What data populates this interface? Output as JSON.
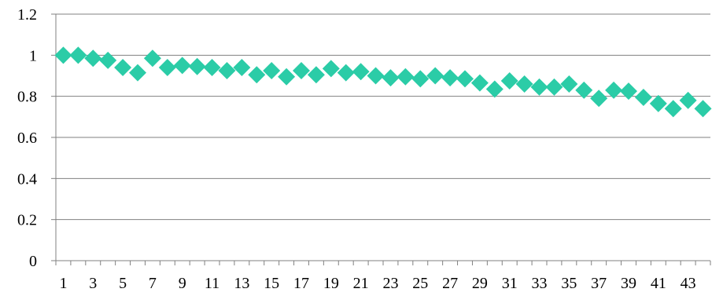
{
  "chart_data": {
    "type": "line",
    "marker": "diamond",
    "line_visible": false,
    "x": [
      1,
      2,
      3,
      4,
      5,
      6,
      7,
      8,
      9,
      10,
      11,
      12,
      13,
      14,
      15,
      16,
      17,
      18,
      19,
      20,
      21,
      22,
      23,
      24,
      25,
      26,
      27,
      28,
      29,
      30,
      31,
      32,
      33,
      34,
      35,
      36,
      37,
      38,
      39,
      40,
      41,
      42,
      43,
      44
    ],
    "x_tick_labels": [
      "1",
      "3",
      "5",
      "7",
      "9",
      "11",
      "13",
      "15",
      "17",
      "19",
      "21",
      "23",
      "25",
      "27",
      "29",
      "31",
      "33",
      "35",
      "37",
      "39",
      "41",
      "43"
    ],
    "series": [
      {
        "values": [
          1.0,
          1.0,
          0.985,
          0.975,
          0.94,
          0.915,
          0.985,
          0.94,
          0.95,
          0.945,
          0.94,
          0.925,
          0.94,
          0.905,
          0.925,
          0.895,
          0.925,
          0.905,
          0.935,
          0.915,
          0.92,
          0.9,
          0.89,
          0.895,
          0.885,
          0.9,
          0.89,
          0.885,
          0.865,
          0.835,
          0.875,
          0.86,
          0.845,
          0.845,
          0.86,
          0.83,
          0.79,
          0.83,
          0.825,
          0.795,
          0.765,
          0.74,
          0.78,
          0.74
        ],
        "color": "#2bcca7"
      }
    ],
    "y_ticks": [
      "0",
      "0.2",
      "0.4",
      "0.6",
      "0.8",
      "1",
      "1.2"
    ],
    "ylim": [
      0,
      1.2
    ],
    "grid": "horizontal",
    "title": "",
    "xlabel": "",
    "ylabel": "",
    "colors": {
      "marker": "#2bcca7",
      "grid": "#808080",
      "axis": "#808080",
      "text": "#000000"
    }
  }
}
